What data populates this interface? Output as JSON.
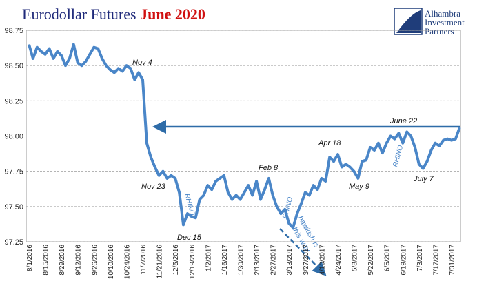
{
  "chart_data": {
    "type": "line",
    "title": "Eurodollar Futures",
    "subtitle": "June 2020",
    "logo": [
      "Alhambra",
      "Investment",
      "Partners"
    ],
    "annotations": [
      "Nov 4",
      "Nov 23",
      "Dec 15",
      "Feb 8",
      "Apr 18",
      "May 9",
      "June 22",
      "July 7",
      "RHINO",
      "RHINO",
      "RHINO",
      "hawkish is",
      "this way"
    ],
    "categories": [
      "8/1/2016",
      null,
      null,
      null,
      "8/15/2016",
      null,
      null,
      null,
      "8/29/2016",
      null,
      null,
      null,
      "9/12/2016",
      null,
      null,
      null,
      "9/26/2016",
      null,
      null,
      null,
      "10/10/2016",
      null,
      null,
      null,
      "10/24/2016",
      null,
      null,
      null,
      "11/7/2016",
      null,
      null,
      null,
      "11/21/2016",
      null,
      null,
      null,
      "12/5/2016",
      null,
      null,
      null,
      "12/19/2016",
      null,
      null,
      null,
      "1/2/2017",
      null,
      null,
      null,
      "1/16/2017",
      null,
      null,
      null,
      "1/30/2017",
      null,
      null,
      null,
      "2/13/2017",
      null,
      null,
      null,
      "2/27/2017",
      null,
      null,
      null,
      "3/13/2017",
      null,
      null,
      null,
      "3/27/2017",
      null,
      null,
      null,
      "4/10/2017",
      null,
      null,
      null,
      "4/24/2017",
      null,
      null,
      null,
      "5/8/2017",
      null,
      null,
      null,
      "5/22/2017",
      null,
      null,
      null,
      "6/5/2017",
      null,
      null,
      null,
      "6/19/2017",
      null,
      null,
      null,
      "7/3/2017",
      null,
      null,
      null,
      "7/17/2017",
      null,
      null,
      null,
      "7/31/2017",
      null,
      null
    ],
    "series": [
      {
        "color": "#4a86c8",
        "values": [
          98.65,
          98.55,
          98.63,
          98.6,
          98.58,
          98.62,
          98.55,
          98.6,
          98.57,
          98.5,
          98.55,
          98.65,
          98.52,
          98.5,
          98.53,
          98.58,
          98.63,
          98.62,
          98.55,
          98.5,
          98.47,
          98.45,
          98.48,
          98.46,
          98.5,
          98.48,
          98.4,
          98.45,
          98.4,
          97.95,
          97.85,
          97.78,
          97.72,
          97.75,
          97.7,
          97.72,
          97.7,
          97.6,
          97.37,
          97.45,
          97.43,
          97.42,
          97.55,
          97.58,
          97.65,
          97.62,
          97.68,
          97.7,
          97.72,
          97.6,
          97.55,
          97.58,
          97.55,
          97.6,
          97.65,
          97.58,
          97.68,
          97.55,
          97.62,
          97.7,
          97.58,
          97.5,
          97.45,
          97.48,
          97.38,
          97.35,
          97.45,
          97.52,
          97.6,
          97.58,
          97.65,
          97.62,
          97.7,
          97.68,
          97.85,
          97.82,
          97.87,
          97.78,
          97.8,
          97.78,
          97.75,
          97.7,
          97.82,
          97.83,
          97.92,
          97.9,
          97.95,
          97.88,
          97.95,
          98.0,
          97.98,
          98.02,
          97.95,
          98.03,
          98.0,
          97.92,
          97.8,
          97.77,
          97.82,
          97.9,
          97.95,
          97.93,
          97.97,
          97.98,
          97.97,
          97.98,
          98.06
        ]
      }
    ],
    "ylim": [
      97.25,
      98.75
    ],
    "yticks": [
      97.25,
      {
        "value": 97.5,
        "label": "97.50"
      },
      97.75,
      {
        "value": 98,
        "label": "98.00"
      },
      98.25,
      {
        "value": 98.5,
        "label": "98.50"
      },
      98.75
    ],
    "grid": true
  }
}
